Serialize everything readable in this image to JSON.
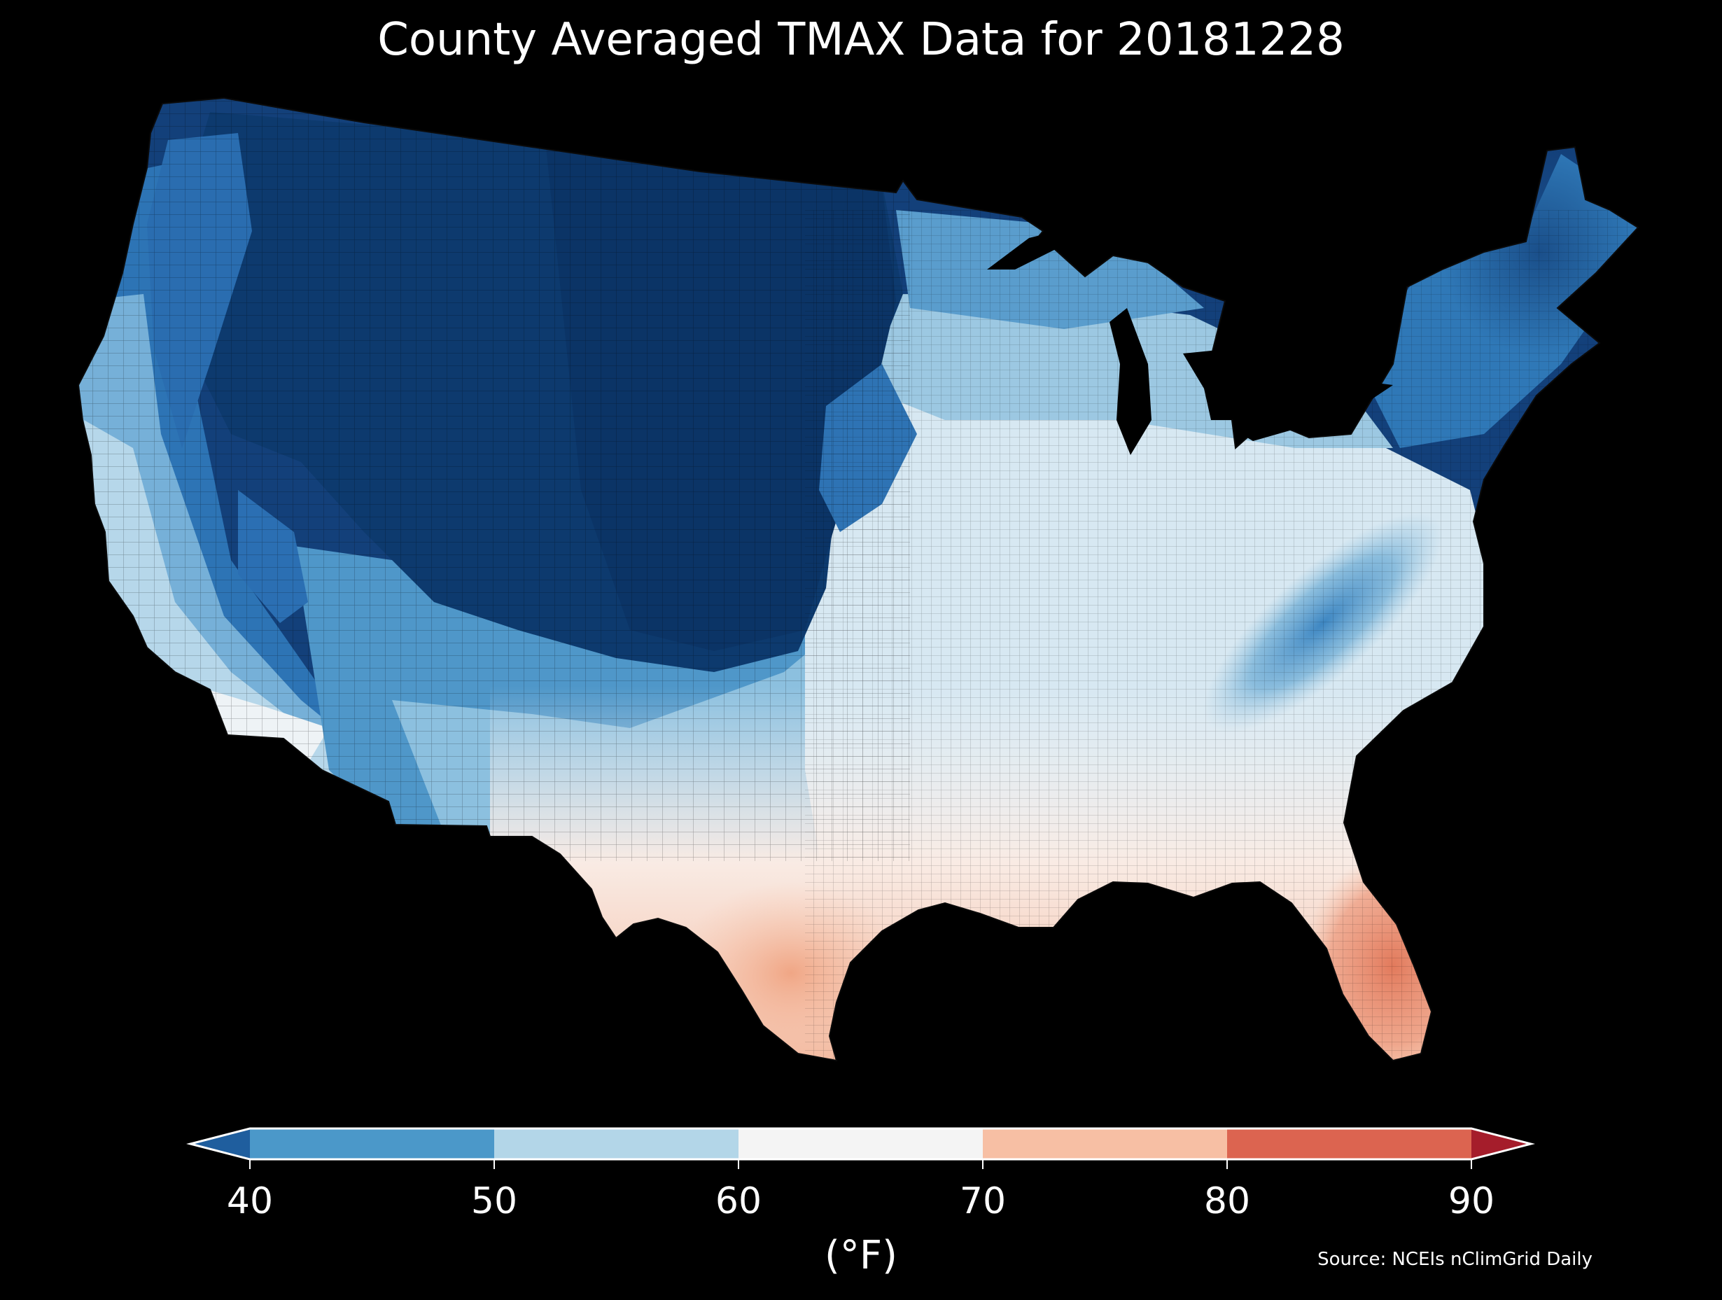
{
  "title": "County Averaged TMAX Data for 20181228",
  "colorbar": {
    "label": "(°F)",
    "ticks": [
      "40",
      "50",
      "60",
      "70",
      "80",
      "90"
    ],
    "bins": [
      {
        "range": "<40",
        "color": "#1f5e9e"
      },
      {
        "range": "40-50",
        "color": "#4b98c9"
      },
      {
        "range": "50-60",
        "color": "#b3d6e8"
      },
      {
        "range": "60-70",
        "color": "#f4f4f4"
      },
      {
        "range": "70-80",
        "color": "#f7bfa4"
      },
      {
        "range": "80-90",
        "color": "#dc6450"
      },
      {
        "range": ">90",
        "color": "#a51d2b"
      }
    ],
    "extend": "both"
  },
  "source": "Source: NCEIs nClimGrid Daily",
  "map": {
    "region": "Contiguous United States",
    "boundaries": "county outlines",
    "background": "#000000",
    "water": "#000000",
    "pattern": "Coldest in northern Rockies/Plains and northern tier; warmest along Gulf Coast and Florida; cool band along the Appalachians"
  },
  "chart_data": {
    "type": "heatmap",
    "title": "County Averaged TMAX Data for 20181228",
    "variable": "TMAX",
    "unit": "°F",
    "scale_ticks": [
      40,
      50,
      60,
      70,
      80,
      90
    ],
    "legend_placement": "bottom"
  }
}
